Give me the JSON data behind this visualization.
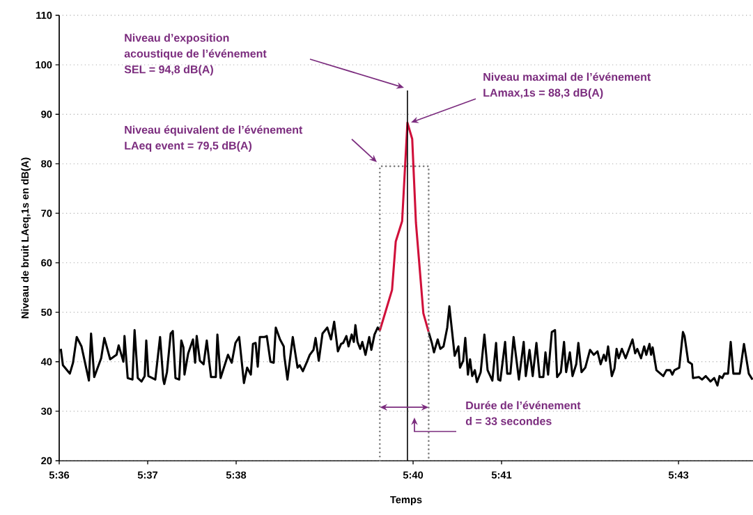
{
  "chart_data": {
    "type": "line",
    "xlabel": "Temps",
    "ylabel": "Niveau de bruit LAeq,1s en dB(A)",
    "xlim": [
      5.6,
      5.7307
    ],
    "xticks": [
      {
        "value": 5.6,
        "label": "5:36"
      },
      {
        "value": 5.6166667,
        "label": "5:37"
      },
      {
        "value": 5.6333333,
        "label": "5:38"
      },
      {
        "value": 5.6666667,
        "label": "5:40"
      },
      {
        "value": 5.6833333,
        "label": "5:41"
      },
      {
        "value": 5.7166667,
        "label": "5:43"
      }
    ],
    "ylim": [
      20,
      110
    ],
    "yticks": [
      20,
      30,
      40,
      50,
      60,
      70,
      80,
      90,
      100,
      110
    ],
    "grid": "y",
    "series": [
      {
        "color": "#000000",
        "x": [
          5.6003,
          5.6007,
          5.602,
          5.6026,
          5.6033,
          5.6042,
          5.6056,
          5.606,
          5.6066,
          5.6079,
          5.6085,
          5.6096,
          5.6108,
          5.6112,
          5.6121,
          5.6123,
          5.6129,
          5.6138,
          5.6142,
          5.6148,
          5.6155,
          5.6161,
          5.6164,
          5.6168,
          5.6181,
          5.619,
          5.6196,
          5.6198,
          5.6203,
          5.621,
          5.6214,
          5.6219,
          5.6226,
          5.623,
          5.6234,
          5.6236,
          5.6243,
          5.6252,
          5.6256,
          5.6259,
          5.6265,
          5.6272,
          5.6278,
          5.6286,
          5.6295,
          5.6298,
          5.6304,
          5.6318,
          5.6325,
          5.6332,
          5.6339,
          5.6348,
          5.6354,
          5.6361,
          5.6365,
          5.637,
          5.6374,
          5.6378,
          5.6387,
          5.6391,
          5.6398,
          5.6404,
          5.6408,
          5.6416,
          5.6423,
          5.6424,
          5.643,
          5.644,
          5.6449,
          5.6453,
          5.6459,
          5.6466,
          5.6472,
          5.6479,
          5.6483,
          5.6489,
          5.6496,
          5.6505,
          5.6512,
          5.6518,
          5.6525,
          5.6531,
          5.6535,
          5.6541,
          5.6545,
          5.6551,
          5.6555,
          5.6558,
          5.6562,
          5.6567,
          5.6571,
          5.6577,
          5.6584,
          5.6588,
          5.6594,
          5.66,
          5.6604
        ],
        "values": [
          42.6,
          39.3,
          37.6,
          39.8,
          45.0,
          43.1,
          36.2,
          45.7,
          36.9,
          40.7,
          44.8,
          40.5,
          41.4,
          43.3,
          40.0,
          45.2,
          36.7,
          36.4,
          46.4,
          36.7,
          36.0,
          37.1,
          44.3,
          37.1,
          36.4,
          45.0,
          36.4,
          35.5,
          37.9,
          45.7,
          46.2,
          36.7,
          36.4,
          44.3,
          42.9,
          37.4,
          41.7,
          44.5,
          39.8,
          45.2,
          40.2,
          39.5,
          44.3,
          36.9,
          36.9,
          45.5,
          36.7,
          41.4,
          39.8,
          43.8,
          45.0,
          35.7,
          38.8,
          37.4,
          43.6,
          43.8,
          39.0,
          45.0,
          45.0,
          45.2,
          40.0,
          39.8,
          46.9,
          44.5,
          43.1,
          41.2,
          36.4,
          45.0,
          38.8,
          39.3,
          38.1,
          39.8,
          41.4,
          42.4,
          44.8,
          40.2,
          45.7,
          46.9,
          44.5,
          48.1,
          42.1,
          43.6,
          43.8,
          45.2,
          43.1,
          45.5,
          44.0,
          47.4,
          44.0,
          42.6,
          44.0,
          41.4,
          45.0,
          42.4,
          45.5,
          46.9,
          46.3
        ]
      },
      {
        "color": "#d0103a",
        "x": [
          5.6604,
          5.6627,
          5.6634,
          5.6646,
          5.6656,
          5.6665,
          5.6672,
          5.6686,
          5.6696
        ],
        "values": [
          46.3,
          54.5,
          64.3,
          68.4,
          88.3,
          85.0,
          68.1,
          49.8,
          46.0
        ]
      },
      {
        "color": "#000000",
        "x": [
          5.6696,
          5.6702,
          5.6706,
          5.6713,
          5.6718,
          5.6724,
          5.6731,
          5.6735,
          5.6745,
          5.6752,
          5.6755,
          5.6761,
          5.6765,
          5.677,
          5.6774,
          5.6778,
          5.6783,
          5.6787,
          5.6794,
          5.6801,
          5.6807,
          5.6816,
          5.6823,
          5.6827,
          5.6831,
          5.684,
          5.6844,
          5.685,
          5.6856,
          5.6866,
          5.6875,
          5.6879,
          5.6886,
          5.6892,
          5.6899,
          5.6905,
          5.6912,
          5.6916,
          5.6921,
          5.6928,
          5.6934,
          5.6938,
          5.6945,
          5.6951,
          5.6955,
          5.6962,
          5.6967,
          5.6974,
          5.6978,
          5.6984,
          5.6991,
          5.7,
          5.7007,
          5.7014,
          5.702,
          5.7026,
          5.703,
          5.7034,
          5.7041,
          5.7046,
          5.705,
          5.7054,
          5.706,
          5.7067,
          5.708,
          5.7085,
          5.7089,
          5.7096,
          5.7102,
          5.7106,
          5.7112,
          5.7115,
          5.7118,
          5.7125,
          5.7138,
          5.7144,
          5.7151,
          5.7155,
          5.7159,
          5.7168,
          5.7175,
          5.7178,
          5.7185,
          5.7192,
          5.7194,
          5.7205,
          5.7211,
          5.7218,
          5.7227,
          5.7234,
          5.724,
          5.7244,
          5.7249,
          5.7253,
          5.726,
          5.7265,
          5.727,
          5.7282,
          5.729,
          5.7299,
          5.7306
        ],
        "values": [
          46.0,
          43.8,
          41.9,
          44.5,
          42.6,
          43.1,
          46.9,
          51.2,
          41.2,
          43.1,
          38.8,
          40.2,
          44.8,
          37.4,
          40.5,
          37.1,
          38.3,
          35.9,
          37.9,
          45.5,
          38.3,
          36.2,
          43.8,
          36.4,
          36.2,
          44.0,
          37.6,
          37.6,
          45.0,
          36.4,
          44.0,
          37.1,
          42.4,
          37.1,
          43.8,
          36.9,
          36.9,
          41.9,
          37.4,
          46.0,
          46.4,
          36.9,
          37.9,
          44.0,
          37.9,
          41.9,
          37.1,
          39.5,
          43.8,
          37.9,
          38.8,
          42.4,
          41.4,
          42.1,
          39.5,
          41.4,
          40.2,
          43.1,
          37.1,
          38.6,
          42.6,
          40.7,
          42.6,
          40.7,
          44.5,
          41.7,
          42.6,
          40.7,
          43.1,
          41.4,
          43.6,
          41.4,
          42.9,
          38.3,
          37.1,
          38.3,
          38.3,
          37.4,
          38.3,
          38.8,
          46.0,
          45.2,
          40.0,
          39.5,
          36.7,
          36.9,
          36.4,
          37.1,
          36.0,
          36.7,
          35.2,
          37.1,
          36.7,
          37.6,
          37.6,
          44.0,
          37.6,
          37.6,
          43.6,
          37.6,
          36.4
        ]
      },
      {
        "color": "#808080",
        "line_style": "dotted",
        "x": [
          5.6604,
          5.6604,
          5.6696,
          5.6696
        ],
        "values": [
          20,
          79.5,
          79.5,
          20
        ]
      },
      {
        "color": "#000000",
        "x": [
          5.6656,
          5.6656
        ],
        "values": [
          20,
          94.8
        ]
      }
    ],
    "annotations": [
      "Niveau d’exposition",
      "acoustique de l’événement",
      "SEL = 94,8 dB(A)",
      "Niveau maximal de l’événement",
      "LAmax,1s = 88,3 dB(A)",
      "Niveau équivalent de l’événement",
      "LAeq event = 79,5 dB(A)",
      "Durée de l’événement",
      "d = 33 secondes"
    ]
  }
}
